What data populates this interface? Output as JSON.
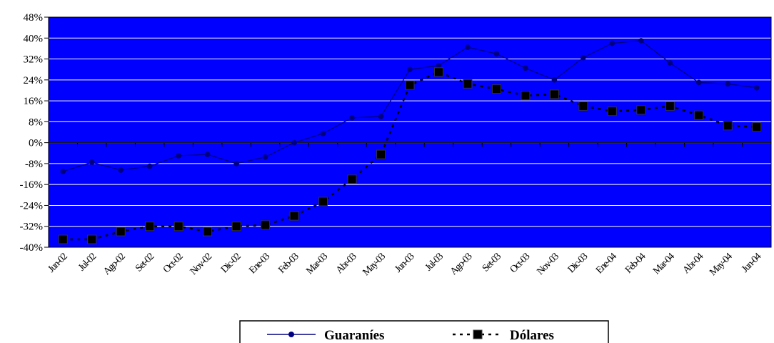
{
  "chart_data": {
    "type": "line",
    "title": "",
    "xlabel": "",
    "ylabel": "",
    "ylim": [
      -40,
      48
    ],
    "y_ticks": [
      "48%",
      "40%",
      "32%",
      "24%",
      "16%",
      "8%",
      "0%",
      "-8%",
      "-16%",
      "-24%",
      "-32%",
      "-40%"
    ],
    "y_tick_values": [
      48,
      40,
      32,
      24,
      16,
      8,
      0,
      -8,
      -16,
      -24,
      -32,
      -40
    ],
    "categories": [
      "Jun-02",
      "Jul-02",
      "Ago-02",
      "Set-02",
      "Oct-02",
      "Nov-02",
      "Dic-02",
      "Ene-03",
      "Feb-03",
      "Mar-03",
      "Abr-03",
      "May-03",
      "Jun-03",
      "Jul-03",
      "Ago-03",
      "Set-03",
      "Oct-03",
      "Nov-03",
      "Dic-03",
      "Ene-04",
      "Feb-04",
      "Mar-04",
      "Abr-04",
      "May-04",
      "Jun-04"
    ],
    "series": [
      {
        "name": "Guaraníes",
        "color": "#000080",
        "marker": "circle",
        "line": "solid",
        "values": [
          -11,
          -7.5,
          -10.5,
          -9,
          -5,
          -4.5,
          -8,
          -5.5,
          0,
          3.5,
          9.5,
          10,
          28,
          29.5,
          36.5,
          34,
          28.5,
          24,
          32.5,
          38,
          39,
          30.5,
          23,
          22.5,
          21
        ]
      },
      {
        "name": "Dólares",
        "color": "#000000",
        "marker": "square",
        "line": "dashed",
        "values": [
          -37,
          -37,
          -34,
          -32,
          -32,
          -34,
          -32,
          -31.5,
          -28,
          -22.5,
          -14,
          -4.5,
          22,
          27,
          22.5,
          20.5,
          18,
          18.5,
          14,
          12,
          12.5,
          14,
          10.5,
          6.5,
          6
        ]
      }
    ],
    "background_color": "#0000ff",
    "grid": true,
    "gridline_color": "#ffffff",
    "legend_position": "bottom"
  }
}
